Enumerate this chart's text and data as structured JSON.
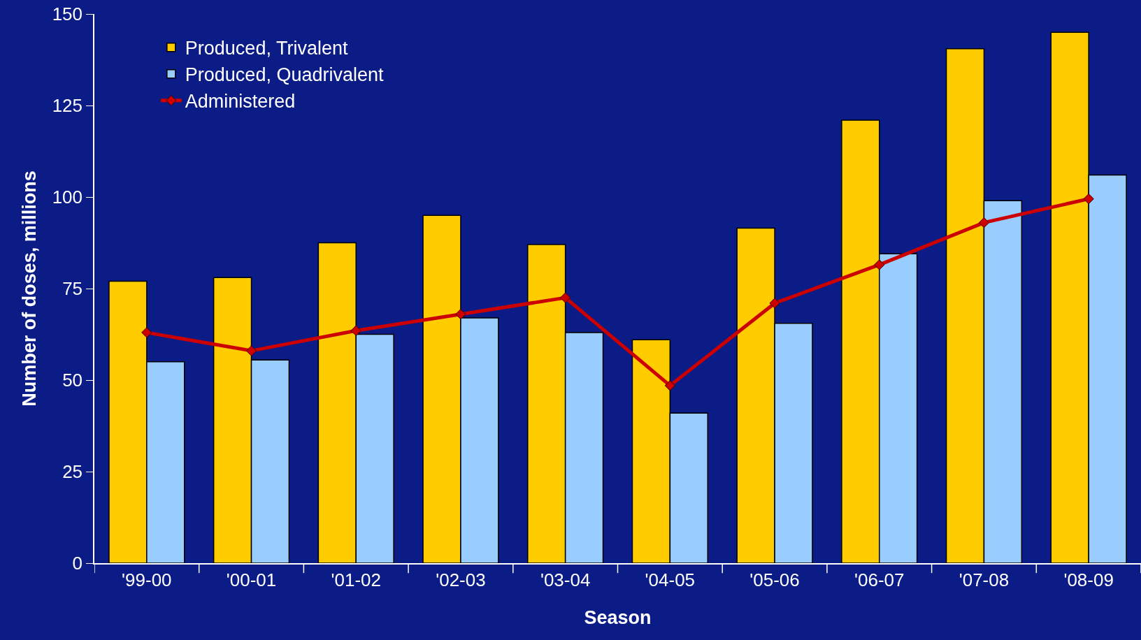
{
  "chart_data": {
    "type": "bar",
    "xlabel": "Season",
    "ylabel": "Number of doses, millions",
    "categories": [
      "'99-00",
      "'00-01",
      "'01-02",
      "'02-03",
      "'03-04",
      "'04-05",
      "'05-06",
      "'06-07",
      "'07-08",
      "'08-09"
    ],
    "series": [
      {
        "name": "Produced, Trivalent",
        "color": "#ffcc00",
        "values": [
          77,
          78,
          87.5,
          95,
          87,
          61,
          91.5,
          121,
          140.5,
          145
        ]
      },
      {
        "name": "Produced, Quadrivalent",
        "color": "#99ccff",
        "values": [
          55,
          55.5,
          62.5,
          67,
          63,
          41,
          65.5,
          84.5,
          99,
          106
        ]
      },
      {
        "name": "Administered",
        "type": "line",
        "color": "#cc0000",
        "marker": "diamond",
        "values": [
          63,
          58,
          63.5,
          68,
          72.5,
          48.5,
          71,
          81.5,
          93,
          99.5
        ]
      }
    ],
    "ylim": [
      0,
      150
    ],
    "yticks": [
      0,
      25,
      50,
      75,
      100,
      125,
      150
    ],
    "grid": false,
    "legend": "top left"
  }
}
